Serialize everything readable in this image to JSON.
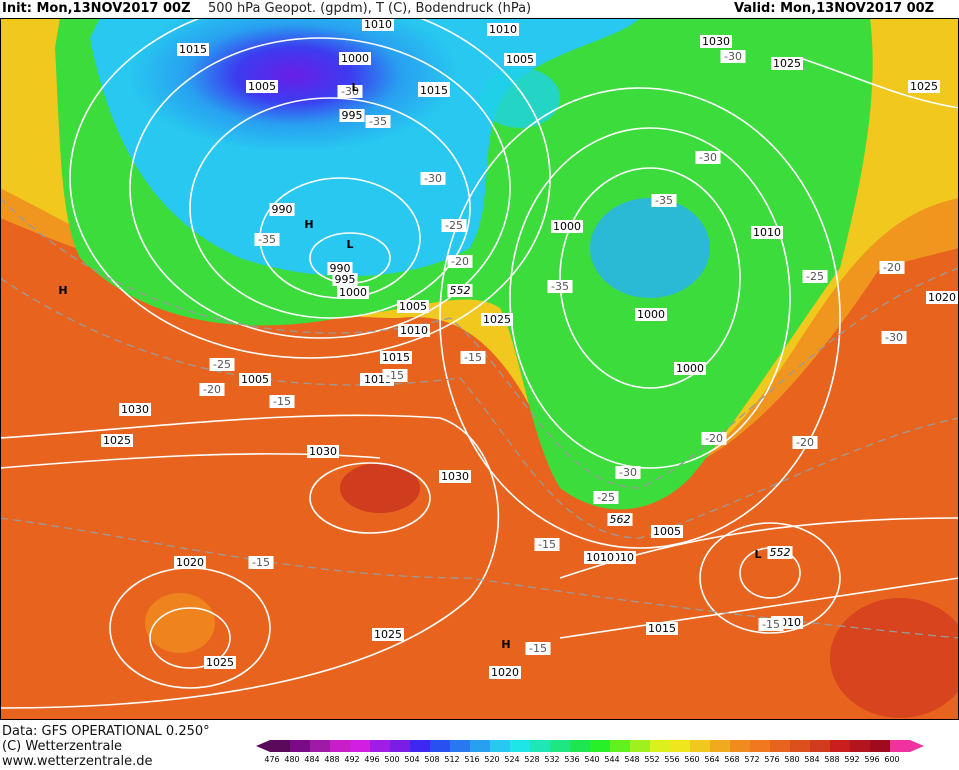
{
  "header": {
    "init": "Init: Mon,13NOV2017 00Z",
    "title": "500 hPa Geopot. (gpdm), T (C), Bodendruck (hPa)",
    "valid": "Valid: Mon,13NOV2017 00Z"
  },
  "footer": {
    "data_line": "Data: GFS OPERATIONAL 0.250°",
    "copyright": "(C) Wetterzentrale",
    "url": "www.wetterzentrale.de"
  },
  "colorbar": {
    "values": [
      "476",
      "480",
      "484",
      "488",
      "492",
      "496",
      "500",
      "504",
      "508",
      "512",
      "516",
      "520",
      "524",
      "528",
      "532",
      "536",
      "540",
      "544",
      "548",
      "552",
      "556",
      "560",
      "564",
      "568",
      "572",
      "576",
      "580",
      "584",
      "588",
      "592",
      "596",
      "600"
    ],
    "colors": [
      "#5b0a5b",
      "#7a0a86",
      "#a01aa8",
      "#c81ec8",
      "#d21ee0",
      "#9e1ee6",
      "#7a1ee6",
      "#3c28f0",
      "#2850f0",
      "#2878f0",
      "#28a0f0",
      "#28c8f0",
      "#1ee6e6",
      "#1ee6b4",
      "#1ee682",
      "#1ee650",
      "#28f028",
      "#64f01e",
      "#a0f01e",
      "#dcf01e",
      "#f0e61e",
      "#f0c81e",
      "#f0aa1e",
      "#f08c1e",
      "#f0781e",
      "#e6641e",
      "#dc501e",
      "#d23c1e",
      "#c81e1e",
      "#b4141e",
      "#a00a1e",
      "#f0329e"
    ]
  },
  "map_labels": {
    "isobars": [
      "1010",
      "1015",
      "1010",
      "1015",
      "1005",
      "1030",
      "1025",
      "1000",
      "1005",
      "1015",
      "1025",
      "995",
      "990",
      "990",
      "995",
      "1000",
      "1005",
      "1000",
      "1010",
      "1010",
      "1000",
      "1000",
      "1025",
      "1005",
      "1010",
      "1015",
      "1020",
      "1030",
      "1025",
      "1030",
      "1030",
      "1020",
      "1015",
      "1025",
      "1020",
      "1010",
      "1005",
      "1015",
      "1010",
      "1020",
      "1025"
    ],
    "temps": [
      "-30",
      "-30",
      "-35",
      "-35",
      "-30",
      "-35",
      "-30",
      "-25",
      "-20",
      "-25",
      "-25",
      "-20",
      "-15",
      "-15",
      "-35",
      "-30",
      "-15",
      "-20",
      "-20",
      "-30",
      "-25",
      "-15",
      "-15",
      "-15",
      "-15",
      "-20"
    ],
    "geopot": [
      "552",
      "562",
      "552"
    ],
    "highs_lows": [
      "L",
      "H",
      "L",
      "H",
      "H",
      "L"
    ]
  }
}
